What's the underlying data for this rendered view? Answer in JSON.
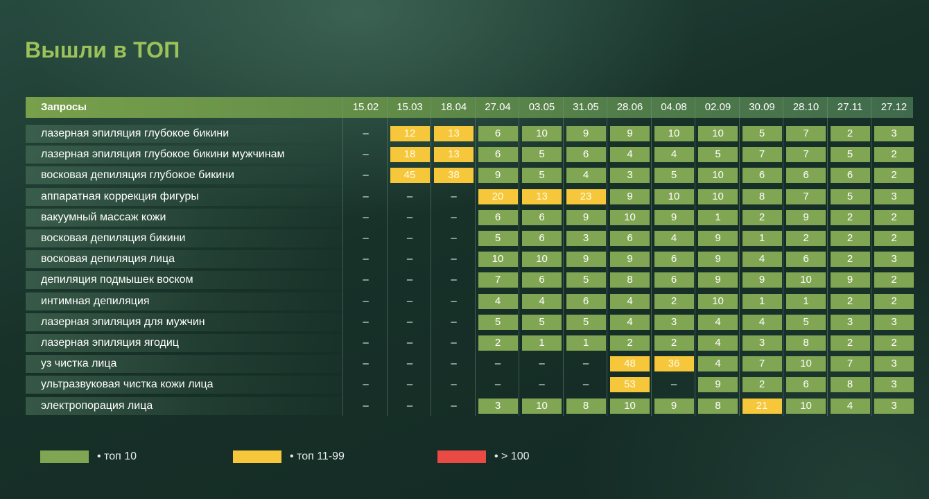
{
  "title": "Вышли в ТОП",
  "header": {
    "query_label": "Запросы",
    "dates": [
      "15.02",
      "15.03",
      "18.04",
      "27.04",
      "03.05",
      "31.05",
      "28.06",
      "04.08",
      "02.09",
      "30.09",
      "28.10",
      "27.11",
      "27.12"
    ]
  },
  "colors": {
    "top10": "#80a653",
    "top11_99": "#f6c73a",
    "over100": "#e94a43",
    "title": "#9cc25a"
  },
  "rows": [
    {
      "query": "лазерная эпиляция глубокое бикини",
      "values": [
        "–",
        "12",
        "13",
        "6",
        "10",
        "9",
        "9",
        "10",
        "10",
        "5",
        "7",
        "2",
        "3"
      ],
      "tiers": [
        "dash",
        "yellow",
        "yellow",
        "green",
        "green",
        "green",
        "green",
        "green",
        "green",
        "green",
        "green",
        "green",
        "green"
      ]
    },
    {
      "query": "лазерная эпиляция глубокое бикини мужчинам",
      "values": [
        "–",
        "18",
        "13",
        "6",
        "5",
        "6",
        "4",
        "4",
        "5",
        "7",
        "7",
        "5",
        "2"
      ],
      "tiers": [
        "dash",
        "yellow",
        "yellow",
        "green",
        "green",
        "green",
        "green",
        "green",
        "green",
        "green",
        "green",
        "green",
        "green"
      ]
    },
    {
      "query": "восковая депиляция глубокое бикини",
      "values": [
        "–",
        "45",
        "38",
        "9",
        "5",
        "4",
        "3",
        "5",
        "10",
        "6",
        "6",
        "6",
        "2"
      ],
      "tiers": [
        "dash",
        "yellow",
        "yellow",
        "green",
        "green",
        "green",
        "green",
        "green",
        "green",
        "green",
        "green",
        "green",
        "green"
      ]
    },
    {
      "query": "аппаратная коррекция фигуры",
      "values": [
        "–",
        "–",
        "–",
        "20",
        "13",
        "23",
        "9",
        "10",
        "10",
        "8",
        "7",
        "5",
        "3"
      ],
      "tiers": [
        "dash",
        "dash",
        "dash",
        "yellow",
        "yellow",
        "yellow",
        "green",
        "green",
        "green",
        "green",
        "green",
        "green",
        "green"
      ]
    },
    {
      "query": "вакуумный массаж кожи",
      "values": [
        "–",
        "–",
        "–",
        "6",
        "6",
        "9",
        "10",
        "9",
        "1",
        "2",
        "9",
        "2",
        "2"
      ],
      "tiers": [
        "dash",
        "dash",
        "dash",
        "green",
        "green",
        "green",
        "green",
        "green",
        "green",
        "green",
        "green",
        "green",
        "green"
      ]
    },
    {
      "query": "восковая депиляция бикини",
      "values": [
        "–",
        "–",
        "–",
        "5",
        "6",
        "3",
        "6",
        "4",
        "9",
        "1",
        "2",
        "2",
        "2"
      ],
      "tiers": [
        "dash",
        "dash",
        "dash",
        "green",
        "green",
        "green",
        "green",
        "green",
        "green",
        "green",
        "green",
        "green",
        "green"
      ]
    },
    {
      "query": "восковая депиляция лица",
      "values": [
        "–",
        "–",
        "–",
        "10",
        "10",
        "9",
        "9",
        "6",
        "9",
        "4",
        "6",
        "2",
        "3"
      ],
      "tiers": [
        "dash",
        "dash",
        "dash",
        "green",
        "green",
        "green",
        "green",
        "green",
        "green",
        "green",
        "green",
        "green",
        "green"
      ]
    },
    {
      "query": "депиляция подмышек воском",
      "values": [
        "–",
        "–",
        "–",
        "7",
        "6",
        "5",
        "8",
        "6",
        "9",
        "9",
        "10",
        "9",
        "2"
      ],
      "tiers": [
        "dash",
        "dash",
        "dash",
        "green",
        "green",
        "green",
        "green",
        "green",
        "green",
        "green",
        "green",
        "green",
        "green"
      ]
    },
    {
      "query": "интимная депиляция",
      "values": [
        "–",
        "–",
        "–",
        "4",
        "4",
        "6",
        "4",
        "2",
        "10",
        "1",
        "1",
        "2",
        "2"
      ],
      "tiers": [
        "dash",
        "dash",
        "dash",
        "green",
        "green",
        "green",
        "green",
        "green",
        "green",
        "green",
        "green",
        "green",
        "green"
      ]
    },
    {
      "query": "лазерная эпиляция для мужчин",
      "values": [
        "–",
        "–",
        "–",
        "5",
        "5",
        "5",
        "4",
        "3",
        "4",
        "4",
        "5",
        "3",
        "3"
      ],
      "tiers": [
        "dash",
        "dash",
        "dash",
        "green",
        "green",
        "green",
        "green",
        "green",
        "green",
        "green",
        "green",
        "green",
        "green"
      ]
    },
    {
      "query": "лазерная эпиляция ягодиц",
      "values": [
        "–",
        "–",
        "–",
        "2",
        "1",
        "1",
        "2",
        "2",
        "4",
        "3",
        "8",
        "2",
        "2"
      ],
      "tiers": [
        "dash",
        "dash",
        "dash",
        "green",
        "green",
        "green",
        "green",
        "green",
        "green",
        "green",
        "green",
        "green",
        "green"
      ]
    },
    {
      "query": "уз чистка лица",
      "values": [
        "–",
        "–",
        "–",
        "–",
        "–",
        "–",
        "48",
        "36",
        "4",
        "7",
        "10",
        "7",
        "3"
      ],
      "tiers": [
        "dash",
        "dash",
        "dash",
        "dash",
        "dash",
        "dash",
        "yellow",
        "yellow",
        "green",
        "green",
        "green",
        "green",
        "green"
      ]
    },
    {
      "query": "ультразвуковая чистка кожи лица",
      "values": [
        "–",
        "–",
        "–",
        "–",
        "–",
        "–",
        "53",
        "–",
        "9",
        "2",
        "6",
        "8",
        "3"
      ],
      "tiers": [
        "dash",
        "dash",
        "dash",
        "dash",
        "dash",
        "dash",
        "yellow",
        "dash",
        "green",
        "green",
        "green",
        "green",
        "green"
      ]
    },
    {
      "query": "электропорация лица",
      "values": [
        "–",
        "–",
        "–",
        "3",
        "10",
        "8",
        "10",
        "9",
        "8",
        "21",
        "10",
        "4",
        "3"
      ],
      "tiers": [
        "dash",
        "dash",
        "dash",
        "green",
        "green",
        "green",
        "green",
        "green",
        "green",
        "yellow",
        "green",
        "green",
        "green"
      ]
    }
  ],
  "legend": [
    {
      "label": "• топ 10",
      "color": "#80a653"
    },
    {
      "label": "• топ 11-99",
      "color": "#f6c73a"
    },
    {
      "label": "• > 100",
      "color": "#e94a43"
    }
  ]
}
